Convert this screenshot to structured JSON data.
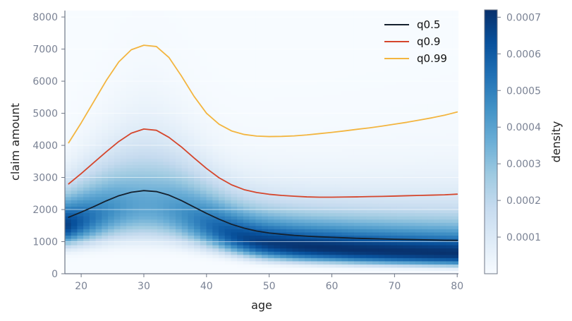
{
  "chart_data": {
    "type": "heatmap",
    "xlabel": "age",
    "ylabel": "claim amount",
    "xlim": [
      17.4,
      80.2
    ],
    "ylim": [
      0,
      8200
    ],
    "x_ticks": [
      20,
      30,
      40,
      50,
      60,
      70,
      80
    ],
    "y_ticks": [
      0,
      1000,
      2000,
      3000,
      4000,
      5000,
      6000,
      7000,
      8000
    ],
    "grid": "horizontal",
    "legend_placement": "top-right",
    "density_colorbar": {
      "label": "density",
      "range": [
        0,
        0.00072
      ],
      "ticks": [
        0.0001,
        0.0002,
        0.0003,
        0.0004,
        0.0005,
        0.0006,
        0.0007
      ],
      "tick_labels": [
        "0.0001",
        "0.0002",
        "0.0003",
        "0.0004",
        "0.0005",
        "0.0006",
        "0.0007"
      ],
      "colormap": "Blues"
    },
    "x": [
      18,
      20,
      22,
      24,
      26,
      28,
      30,
      32,
      34,
      36,
      38,
      40,
      42,
      44,
      46,
      48,
      50,
      52,
      54,
      56,
      58,
      60,
      62,
      64,
      66,
      68,
      70,
      72,
      74,
      76,
      78,
      80
    ],
    "series": [
      {
        "name": "q0.5",
        "color": "#14202e",
        "values": [
          1760,
          1920,
          2090,
          2270,
          2430,
          2540,
          2590,
          2560,
          2450,
          2280,
          2080,
          1880,
          1700,
          1540,
          1420,
          1330,
          1270,
          1230,
          1195,
          1170,
          1150,
          1135,
          1120,
          1105,
          1095,
          1085,
          1075,
          1068,
          1060,
          1052,
          1045,
          1040
        ]
      },
      {
        "name": "q0.9",
        "color": "#d5462c",
        "values": [
          2800,
          3120,
          3460,
          3800,
          4120,
          4380,
          4510,
          4470,
          4250,
          3950,
          3610,
          3280,
          2990,
          2770,
          2620,
          2530,
          2475,
          2440,
          2415,
          2395,
          2385,
          2385,
          2390,
          2395,
          2405,
          2410,
          2420,
          2430,
          2440,
          2450,
          2460,
          2480
        ]
      },
      {
        "name": "q0.99",
        "color": "#f3b53f",
        "values": [
          4080,
          4700,
          5360,
          6020,
          6600,
          6980,
          7120,
          7080,
          6740,
          6160,
          5530,
          5000,
          4660,
          4450,
          4340,
          4290,
          4275,
          4280,
          4295,
          4325,
          4365,
          4405,
          4450,
          4500,
          4545,
          4600,
          4660,
          4720,
          4790,
          4860,
          4940,
          5040
        ]
      }
    ]
  }
}
